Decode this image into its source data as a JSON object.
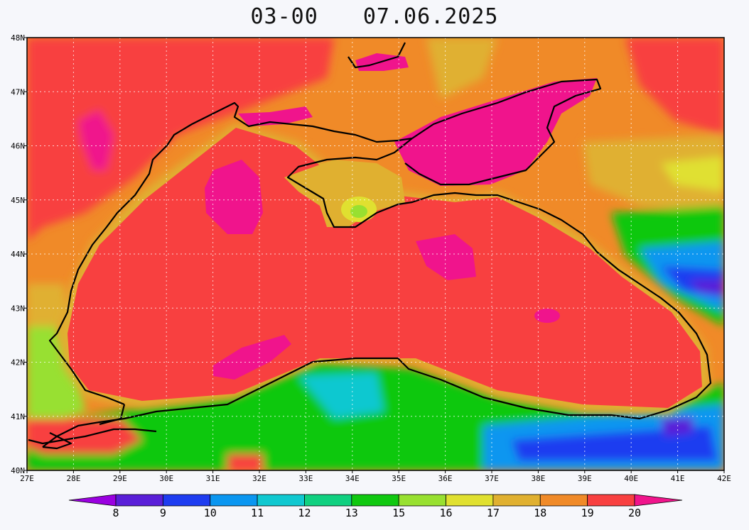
{
  "title": {
    "time": "03-00",
    "date": "07.06.2025"
  },
  "map": {
    "lon_range": [
      27,
      42
    ],
    "lat_range": [
      40,
      48
    ],
    "lon_ticks": [
      "27E",
      "28E",
      "29E",
      "30E",
      "31E",
      "32E",
      "33E",
      "34E",
      "35E",
      "36E",
      "37E",
      "38E",
      "39E",
      "40E",
      "41E",
      "42E"
    ],
    "lat_ticks": [
      "40N",
      "41N",
      "42N",
      "43N",
      "44N",
      "45N",
      "46N",
      "47N",
      "48N"
    ],
    "grid": "dotted"
  },
  "colorbar": {
    "labels": [
      "8",
      "9",
      "10",
      "11",
      "12",
      "13",
      "15",
      "16",
      "17",
      "18",
      "19",
      "20"
    ],
    "colors": [
      "#9a00e0",
      "#5a1fd8",
      "#1e3cf0",
      "#0a96f0",
      "#10c8d0",
      "#10d080",
      "#10c810",
      "#98e030",
      "#e0e030",
      "#e0b030",
      "#f08a28",
      "#f84040",
      "#f0148c"
    ]
  }
}
